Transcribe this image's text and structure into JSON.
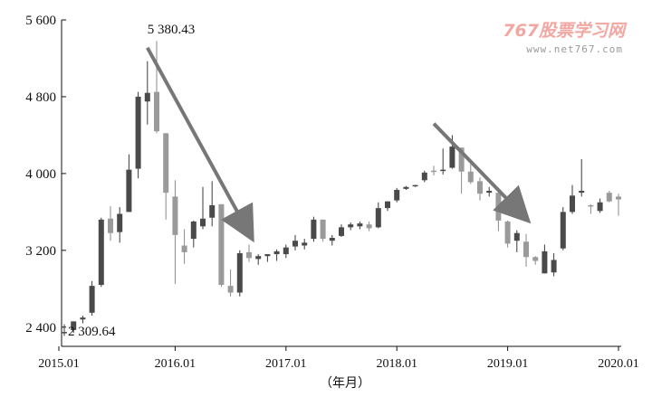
{
  "watermark": {
    "brand": "767股票学习网",
    "url": "www.net767.com"
  },
  "chart_data": {
    "type": "candlestick",
    "xlabel": "（年月）",
    "ylabel": "",
    "ylim": [
      2200,
      5600
    ],
    "y_ticks": [
      {
        "value": 5600,
        "label": "5 600"
      },
      {
        "value": 4800,
        "label": "4 800"
      },
      {
        "value": 4000,
        "label": "4 000"
      },
      {
        "value": 3200,
        "label": "3 200"
      },
      {
        "value": 2400,
        "label": "2 400"
      }
    ],
    "x_ticks": [
      {
        "month_index": 0,
        "label": "2015.01"
      },
      {
        "month_index": 12,
        "label": "2016.01"
      },
      {
        "month_index": 24,
        "label": "2017.01"
      },
      {
        "month_index": 36,
        "label": "2018.01"
      },
      {
        "month_index": 48,
        "label": "2019.01"
      },
      {
        "month_index": 60,
        "label": "2020.01"
      }
    ],
    "annotations": [
      {
        "text": "5 380.43",
        "month_index": 9,
        "value": 5380.43
      },
      {
        "text": "2 309.64",
        "month_index": 0,
        "value": 2309.64
      }
    ],
    "arrows": [
      {
        "from": {
          "month_index": 9,
          "value": 5310
        },
        "to": {
          "month_index": 20,
          "value": 3380
        }
      },
      {
        "from": {
          "month_index": 40,
          "value": 4520
        },
        "to": {
          "month_index": 49.7,
          "value": 3560
        }
      }
    ],
    "candles": [
      {
        "month_index": 0,
        "open": 2340,
        "high": 2430,
        "low": 2310,
        "close": 2350,
        "shade": "dark"
      },
      {
        "month_index": 1,
        "open": 2370,
        "high": 2460,
        "low": 2340,
        "close": 2460,
        "shade": "dark"
      },
      {
        "month_index": 2,
        "open": 2480,
        "high": 2520,
        "low": 2440,
        "close": 2500,
        "shade": "dark"
      },
      {
        "month_index": 3,
        "open": 2550,
        "high": 2880,
        "low": 2520,
        "close": 2830,
        "shade": "dark"
      },
      {
        "month_index": 4,
        "open": 2840,
        "high": 3540,
        "low": 2820,
        "close": 3520,
        "shade": "dark"
      },
      {
        "month_index": 5,
        "open": 3530,
        "high": 3660,
        "low": 3300,
        "close": 3380,
        "shade": "gray"
      },
      {
        "month_index": 6,
        "open": 3390,
        "high": 3650,
        "low": 3280,
        "close": 3580,
        "shade": "dark"
      },
      {
        "month_index": 7,
        "open": 3600,
        "high": 4200,
        "low": 3600,
        "close": 4040,
        "shade": "dark"
      },
      {
        "month_index": 8,
        "open": 4050,
        "high": 4850,
        "low": 3950,
        "close": 4800,
        "shade": "dark"
      },
      {
        "month_index": 9,
        "open": 4750,
        "high": 5170,
        "low": 4510,
        "close": 4840,
        "shade": "dark"
      },
      {
        "month_index": 10,
        "open": 4850,
        "high": 5380,
        "low": 4420,
        "close": 4440,
        "shade": "gray"
      },
      {
        "month_index": 11,
        "open": 4420,
        "high": 4420,
        "low": 3520,
        "close": 3800,
        "shade": "gray"
      },
      {
        "month_index": 12,
        "open": 3760,
        "high": 3930,
        "low": 2850,
        "close": 3360,
        "shade": "gray"
      },
      {
        "month_index": 13,
        "open": 3250,
        "high": 3420,
        "low": 3060,
        "close": 3180,
        "shade": "gray"
      },
      {
        "month_index": 14,
        "open": 3320,
        "high": 3510,
        "low": 3230,
        "close": 3500,
        "shade": "dark"
      },
      {
        "month_index": 15,
        "open": 3450,
        "high": 3860,
        "low": 3420,
        "close": 3530,
        "shade": "dark"
      },
      {
        "month_index": 16,
        "open": 3540,
        "high": 3920,
        "low": 3450,
        "close": 3670,
        "shade": "dark"
      },
      {
        "month_index": 17,
        "open": 3680,
        "high": 3680,
        "low": 2820,
        "close": 2840,
        "shade": "gray"
      },
      {
        "month_index": 18,
        "open": 2830,
        "high": 3000,
        "low": 2720,
        "close": 2760,
        "shade": "gray"
      },
      {
        "month_index": 19,
        "open": 2760,
        "high": 3200,
        "low": 2720,
        "close": 3170,
        "shade": "dark"
      },
      {
        "month_index": 20,
        "open": 3180,
        "high": 3260,
        "low": 3080,
        "close": 3120,
        "shade": "gray"
      },
      {
        "month_index": 21,
        "open": 3110,
        "high": 3160,
        "low": 3050,
        "close": 3140,
        "shade": "dark"
      },
      {
        "month_index": 22,
        "open": 3140,
        "high": 3160,
        "low": 3080,
        "close": 3160,
        "shade": "dark"
      },
      {
        "month_index": 23,
        "open": 3160,
        "high": 3210,
        "low": 3090,
        "close": 3190,
        "shade": "dark"
      },
      {
        "month_index": 24,
        "open": 3160,
        "high": 3260,
        "low": 3120,
        "close": 3230,
        "shade": "dark"
      },
      {
        "month_index": 25,
        "open": 3240,
        "high": 3360,
        "low": 3200,
        "close": 3300,
        "shade": "dark"
      },
      {
        "month_index": 26,
        "open": 3280,
        "high": 3320,
        "low": 3210,
        "close": 3250,
        "shade": "dark"
      },
      {
        "month_index": 27,
        "open": 3320,
        "high": 3550,
        "low": 3290,
        "close": 3520,
        "shade": "dark"
      },
      {
        "month_index": 28,
        "open": 3520,
        "high": 3520,
        "low": 3290,
        "close": 3320,
        "shade": "gray"
      },
      {
        "month_index": 29,
        "open": 3300,
        "high": 3360,
        "low": 3250,
        "close": 3330,
        "shade": "dark"
      },
      {
        "month_index": 30,
        "open": 3350,
        "high": 3470,
        "low": 3340,
        "close": 3440,
        "shade": "dark"
      },
      {
        "month_index": 31,
        "open": 3440,
        "high": 3490,
        "low": 3410,
        "close": 3470,
        "shade": "dark"
      },
      {
        "month_index": 32,
        "open": 3480,
        "high": 3500,
        "low": 3420,
        "close": 3450,
        "shade": "dark"
      },
      {
        "month_index": 33,
        "open": 3470,
        "high": 3500,
        "low": 3400,
        "close": 3430,
        "shade": "gray"
      },
      {
        "month_index": 34,
        "open": 3440,
        "high": 3700,
        "low": 3430,
        "close": 3640,
        "shade": "dark"
      },
      {
        "month_index": 35,
        "open": 3640,
        "high": 3710,
        "low": 3610,
        "close": 3710,
        "shade": "dark"
      },
      {
        "month_index": 36,
        "open": 3720,
        "high": 3850,
        "low": 3700,
        "close": 3830,
        "shade": "dark"
      },
      {
        "month_index": 37,
        "open": 3840,
        "high": 3870,
        "low": 3830,
        "close": 3860,
        "shade": "dark"
      },
      {
        "month_index": 38,
        "open": 3880,
        "high": 3880,
        "low": 3860,
        "close": 3870,
        "shade": "dark"
      },
      {
        "month_index": 39,
        "open": 3930,
        "high": 4030,
        "low": 3910,
        "close": 4010,
        "shade": "dark"
      },
      {
        "month_index": 40,
        "open": 4020,
        "high": 4080,
        "low": 3980,
        "close": 4030,
        "shade": "gray"
      },
      {
        "month_index": 41,
        "open": 4030,
        "high": 4260,
        "low": 3990,
        "close": 4040,
        "shade": "dark"
      },
      {
        "month_index": 42,
        "open": 4060,
        "high": 4400,
        "low": 4050,
        "close": 4280,
        "shade": "dark"
      },
      {
        "month_index": 43,
        "open": 4270,
        "high": 4270,
        "low": 3790,
        "close": 4020,
        "shade": "gray"
      },
      {
        "month_index": 44,
        "open": 4020,
        "high": 4120,
        "low": 3890,
        "close": 3910,
        "shade": "gray"
      },
      {
        "month_index": 45,
        "open": 3920,
        "high": 3960,
        "low": 3720,
        "close": 3790,
        "shade": "gray"
      },
      {
        "month_index": 46,
        "open": 3800,
        "high": 3860,
        "low": 3760,
        "close": 3820,
        "shade": "dark"
      },
      {
        "month_index": 47,
        "open": 3800,
        "high": 3800,
        "low": 3400,
        "close": 3510,
        "shade": "gray"
      },
      {
        "month_index": 48,
        "open": 3500,
        "high": 3510,
        "low": 3230,
        "close": 3270,
        "shade": "gray"
      },
      {
        "month_index": 49,
        "open": 3380,
        "high": 3410,
        "low": 3180,
        "close": 3300,
        "shade": "dark"
      },
      {
        "month_index": 50,
        "open": 3290,
        "high": 3370,
        "low": 3030,
        "close": 3130,
        "shade": "gray"
      },
      {
        "month_index": 51,
        "open": 3130,
        "high": 3140,
        "low": 3050,
        "close": 3090,
        "shade": "gray"
      },
      {
        "month_index": 52,
        "open": 3190,
        "high": 3260,
        "low": 2960,
        "close": 2960,
        "shade": "dark"
      },
      {
        "month_index": 53,
        "open": 2970,
        "high": 3170,
        "low": 2930,
        "close": 3100,
        "shade": "dark"
      },
      {
        "month_index": 54,
        "open": 3220,
        "high": 3650,
        "low": 3200,
        "close": 3600,
        "shade": "dark"
      },
      {
        "month_index": 55,
        "open": 3600,
        "high": 3880,
        "low": 3580,
        "close": 3770,
        "shade": "dark"
      },
      {
        "month_index": 56,
        "open": 3820,
        "high": 4150,
        "low": 3760,
        "close": 3800,
        "shade": "dark"
      },
      {
        "month_index": 57,
        "open": 3660,
        "high": 3680,
        "low": 3580,
        "close": 3670,
        "shade": "gray"
      },
      {
        "month_index": 58,
        "open": 3610,
        "high": 3740,
        "low": 3590,
        "close": 3700,
        "shade": "dark"
      },
      {
        "month_index": 59,
        "open": 3710,
        "high": 3820,
        "low": 3700,
        "close": 3800,
        "shade": "gray"
      },
      {
        "month_index": 60,
        "open": 3730,
        "high": 3790,
        "low": 3560,
        "close": 3760,
        "shade": "gray"
      }
    ]
  }
}
